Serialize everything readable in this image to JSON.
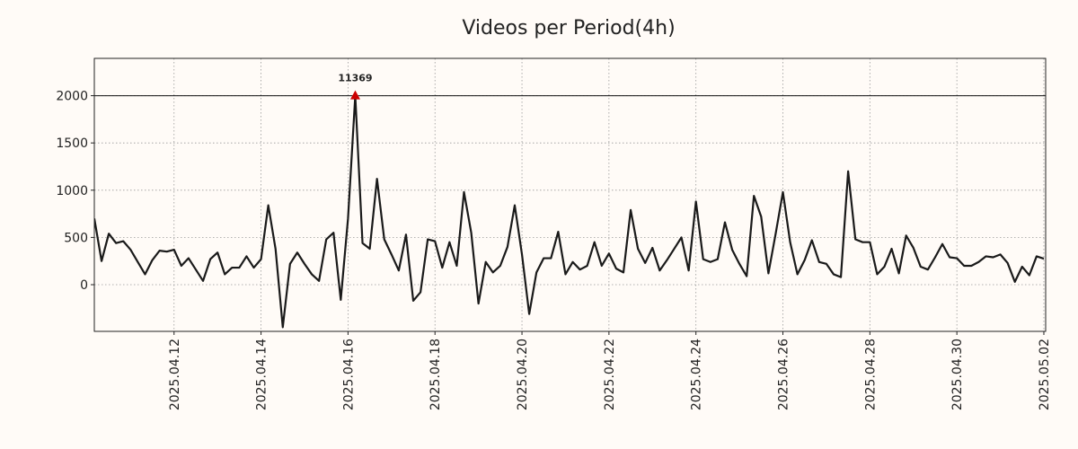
{
  "chart_data": {
    "type": "line",
    "title": "Videos per Period(4h)",
    "x": [
      "2025-04-10 04:00",
      "2025-04-10 08:00",
      "2025-04-10 12:00",
      "2025-04-10 16:00",
      "2025-04-10 20:00",
      "2025-04-11 00:00",
      "2025-04-11 04:00",
      "2025-04-11 08:00",
      "2025-04-11 12:00",
      "2025-04-11 16:00",
      "2025-04-11 20:00",
      "2025-04-12 00:00",
      "2025-04-12 04:00",
      "2025-04-12 08:00",
      "2025-04-12 12:00",
      "2025-04-12 16:00",
      "2025-04-12 20:00",
      "2025-04-13 00:00",
      "2025-04-13 04:00",
      "2025-04-13 08:00",
      "2025-04-13 12:00",
      "2025-04-13 16:00",
      "2025-04-13 20:00",
      "2025-04-14 00:00",
      "2025-04-14 04:00",
      "2025-04-14 08:00",
      "2025-04-14 12:00",
      "2025-04-14 16:00",
      "2025-04-14 20:00",
      "2025-04-15 00:00",
      "2025-04-15 04:00",
      "2025-04-15 08:00",
      "2025-04-15 12:00",
      "2025-04-15 16:00",
      "2025-04-15 20:00",
      "2025-04-16 00:00",
      "2025-04-16 04:00",
      "2025-04-16 08:00",
      "2025-04-16 12:00",
      "2025-04-16 16:00",
      "2025-04-16 20:00",
      "2025-04-17 00:00",
      "2025-04-17 04:00",
      "2025-04-17 08:00",
      "2025-04-17 12:00",
      "2025-04-17 16:00",
      "2025-04-17 20:00",
      "2025-04-18 00:00",
      "2025-04-18 04:00",
      "2025-04-18 08:00",
      "2025-04-18 12:00",
      "2025-04-18 16:00",
      "2025-04-18 20:00",
      "2025-04-19 00:00",
      "2025-04-19 04:00",
      "2025-04-19 08:00",
      "2025-04-19 12:00",
      "2025-04-19 16:00",
      "2025-04-19 20:00",
      "2025-04-20 00:00",
      "2025-04-20 04:00",
      "2025-04-20 08:00",
      "2025-04-20 12:00",
      "2025-04-20 16:00",
      "2025-04-20 20:00",
      "2025-04-21 00:00",
      "2025-04-21 04:00",
      "2025-04-21 08:00",
      "2025-04-21 12:00",
      "2025-04-21 16:00",
      "2025-04-21 20:00",
      "2025-04-22 00:00",
      "2025-04-22 04:00",
      "2025-04-22 08:00",
      "2025-04-22 12:00",
      "2025-04-22 16:00",
      "2025-04-22 20:00",
      "2025-04-23 00:00",
      "2025-04-23 04:00",
      "2025-04-23 08:00",
      "2025-04-23 12:00",
      "2025-04-23 16:00",
      "2025-04-23 20:00",
      "2025-04-24 00:00",
      "2025-04-24 04:00",
      "2025-04-24 08:00",
      "2025-04-24 12:00",
      "2025-04-24 16:00",
      "2025-04-24 20:00",
      "2025-04-25 00:00",
      "2025-04-25 04:00",
      "2025-04-25 08:00",
      "2025-04-25 12:00",
      "2025-04-25 16:00",
      "2025-04-25 20:00",
      "2025-04-26 00:00",
      "2025-04-26 04:00",
      "2025-04-26 08:00",
      "2025-04-26 12:00",
      "2025-04-26 16:00",
      "2025-04-26 20:00",
      "2025-04-27 00:00",
      "2025-04-27 04:00",
      "2025-04-27 08:00",
      "2025-04-27 12:00",
      "2025-04-27 16:00",
      "2025-04-27 20:00",
      "2025-04-28 00:00",
      "2025-04-28 04:00",
      "2025-04-28 08:00",
      "2025-04-28 12:00",
      "2025-04-28 16:00",
      "2025-04-28 20:00",
      "2025-04-29 00:00",
      "2025-04-29 04:00",
      "2025-04-29 08:00",
      "2025-04-29 12:00",
      "2025-04-29 16:00",
      "2025-04-29 20:00",
      "2025-04-30 00:00",
      "2025-04-30 04:00",
      "2025-04-30 08:00",
      "2025-04-30 12:00",
      "2025-04-30 16:00",
      "2025-04-30 20:00",
      "2025-05-01 00:00",
      "2025-05-01 04:00",
      "2025-05-01 08:00",
      "2025-05-01 12:00",
      "2025-05-01 16:00",
      "2025-05-01 20:00",
      "2025-05-02 00:00"
    ],
    "values": [
      700,
      250,
      540,
      440,
      460,
      370,
      240,
      110,
      260,
      360,
      350,
      370,
      200,
      280,
      160,
      40,
      270,
      340,
      110,
      180,
      180,
      300,
      180,
      270,
      840,
      380,
      -450,
      220,
      340,
      220,
      110,
      40,
      480,
      550,
      -160,
      700,
      2000,
      440,
      380,
      1120,
      480,
      320,
      150,
      530,
      -170,
      -80,
      480,
      460,
      180,
      450,
      200,
      980,
      550,
      -200,
      240,
      130,
      200,
      400,
      840,
      320,
      -310,
      130,
      280,
      280,
      560,
      110,
      240,
      160,
      200,
      450,
      200,
      330,
      170,
      130,
      790,
      380,
      230,
      390,
      150,
      260,
      380,
      500,
      150,
      880,
      270,
      240,
      270,
      660,
      370,
      220,
      90,
      940,
      720,
      120,
      540,
      980,
      450,
      110,
      260,
      470,
      240,
      220,
      110,
      80,
      1200,
      480,
      450,
      450,
      110,
      190,
      380,
      120,
      520,
      390,
      190,
      160,
      290,
      430,
      290,
      280,
      200,
      200,
      240,
      300,
      290,
      320,
      230,
      30,
      190,
      100,
      300,
      275
    ],
    "color": "#1a1a1a",
    "xlim": [
      "2025-04-10 04:00",
      "2025-05-02 01:00"
    ],
    "xticks": [
      {
        "value": "2025-04-12 00:00",
        "label": "2025.04.12"
      },
      {
        "value": "2025-04-14 00:00",
        "label": "2025.04.14"
      },
      {
        "value": "2025-04-16 00:00",
        "label": "2025.04.16"
      },
      {
        "value": "2025-04-18 00:00",
        "label": "2025.04.18"
      },
      {
        "value": "2025-04-20 00:00",
        "label": "2025.04.20"
      },
      {
        "value": "2025-04-22 00:00",
        "label": "2025.04.22"
      },
      {
        "value": "2025-04-24 00:00",
        "label": "2025.04.24"
      },
      {
        "value": "2025-04-26 00:00",
        "label": "2025.04.26"
      },
      {
        "value": "2025-04-28 00:00",
        "label": "2025.04.28"
      },
      {
        "value": "2025-04-30 00:00",
        "label": "2025.04.30"
      },
      {
        "value": "2025-05-02 00:00",
        "label": "2025.05.02"
      }
    ],
    "ylim": [
      -494,
      2395
    ],
    "yticks": [
      0,
      500,
      1000,
      1500,
      2000
    ],
    "grid": true,
    "reference_line": 2000,
    "annotations": [
      {
        "text": "11369",
        "x": "2025-04-16 04:00",
        "y": 2000,
        "color": "#cc0000"
      }
    ]
  }
}
